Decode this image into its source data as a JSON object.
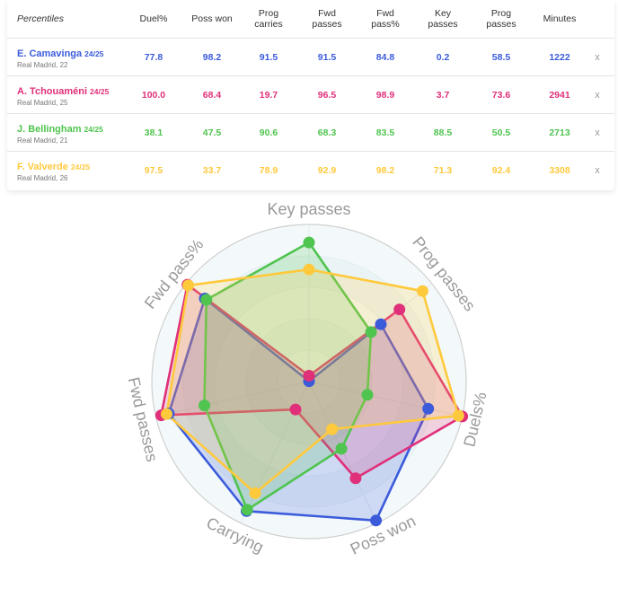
{
  "table": {
    "first_header": "Percentiles",
    "columns": [
      {
        "key": "duel",
        "label_lines": [
          "Duel%"
        ]
      },
      {
        "key": "poss_won",
        "label_lines": [
          "Poss won"
        ]
      },
      {
        "key": "prog_carries",
        "label_lines": [
          "Prog",
          "carries"
        ]
      },
      {
        "key": "fwd_passes",
        "label_lines": [
          "Fwd",
          "passes"
        ]
      },
      {
        "key": "fwd_pass_pct",
        "label_lines": [
          "Fwd",
          "pass%"
        ]
      },
      {
        "key": "key_passes",
        "label_lines": [
          "Key",
          "passes"
        ]
      },
      {
        "key": "prog_passes",
        "label_lines": [
          "Prog",
          "passes"
        ]
      },
      {
        "key": "minutes",
        "label_lines": [
          "Minutes"
        ]
      }
    ],
    "close_label": "x",
    "rows": [
      {
        "name": "E. Camavinga",
        "season": "24/25",
        "sub": "Real Madrid, 22",
        "color": "#3b5bdb",
        "values": [
          "77.8",
          "98.2",
          "91.5",
          "91.5",
          "84.8",
          "0.2",
          "58.5",
          "1222"
        ]
      },
      {
        "name": "A. Tchouaméni",
        "season": "24/25",
        "sub": "Real Madrid, 25",
        "color": "#e0307a",
        "values": [
          "100.0",
          "68.4",
          "19.7",
          "96.5",
          "98.9",
          "3.7",
          "73.6",
          "2941"
        ]
      },
      {
        "name": "J. Bellingham",
        "season": "24/25",
        "sub": "Real Madrid, 21",
        "color": "#4fc44f",
        "values": [
          "38.1",
          "47.5",
          "90.6",
          "68.3",
          "83.5",
          "88.5",
          "50.5",
          "2713"
        ]
      },
      {
        "name": "F. Valverde",
        "season": "24/25",
        "sub": "Real Madrid, 26",
        "color": "#ffc93c",
        "values": [
          "97.5",
          "33.7",
          "78.9",
          "92.9",
          "98.2",
          "71.3",
          "92.4",
          "3308"
        ]
      }
    ]
  },
  "chart_data": {
    "type": "radar",
    "axes": [
      "Key passes",
      "Prog passes",
      "Duels%",
      "Poss won",
      "Carrying",
      "Fwd passes",
      "Fwd pass%"
    ],
    "range": [
      0,
      100
    ],
    "series": [
      {
        "name": "E. Camavinga",
        "color": "#3b5bdb",
        "values": [
          0.2,
          58.5,
          77.8,
          98.2,
          91.5,
          91.5,
          84.8
        ]
      },
      {
        "name": "A. Tchouaméni",
        "color": "#e0307a",
        "values": [
          3.7,
          73.6,
          100.0,
          68.4,
          19.7,
          96.5,
          98.9
        ]
      },
      {
        "name": "J. Bellingham",
        "color": "#4fc44f",
        "values": [
          88.5,
          50.5,
          38.1,
          47.5,
          90.6,
          68.3,
          83.5
        ]
      },
      {
        "name": "F. Valverde",
        "color": "#ffc93c",
        "values": [
          71.3,
          92.4,
          97.5,
          33.7,
          78.9,
          92.9,
          98.2
        ]
      }
    ]
  }
}
